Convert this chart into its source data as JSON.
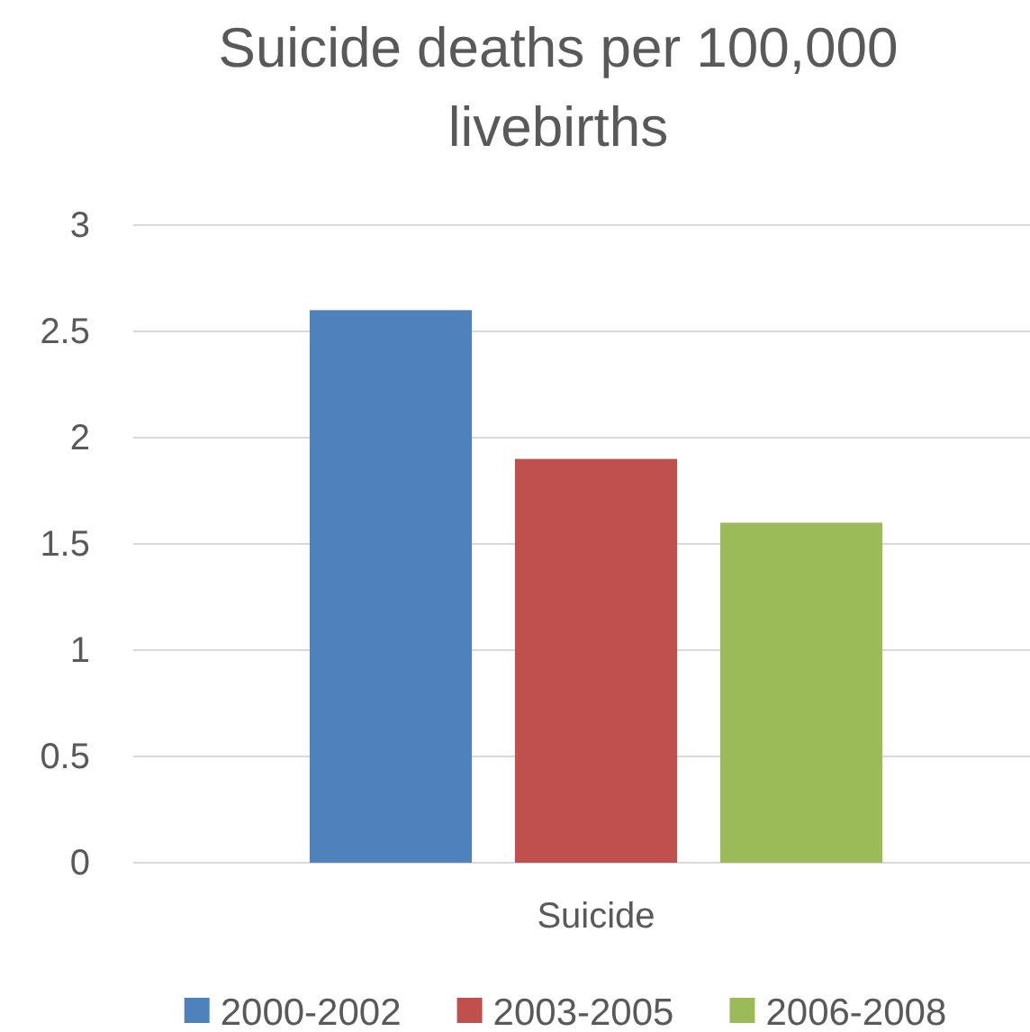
{
  "chart_data": {
    "type": "bar",
    "title": "Suicide deaths per 100,000 livebirths",
    "categories": [
      "Suicide"
    ],
    "series": [
      {
        "name": "2000-2002",
        "color": "#4f81bd",
        "values": [
          2.6
        ]
      },
      {
        "name": "2003-2005",
        "color": "#c0504d",
        "values": [
          1.9
        ]
      },
      {
        "name": "2006-2008",
        "color": "#9bbb59",
        "values": [
          1.6
        ]
      }
    ],
    "ylim": [
      0,
      3
    ],
    "yticks": [
      0,
      0.5,
      1,
      1.5,
      2,
      2.5,
      3
    ],
    "grid": "y",
    "legend": "bottom"
  }
}
